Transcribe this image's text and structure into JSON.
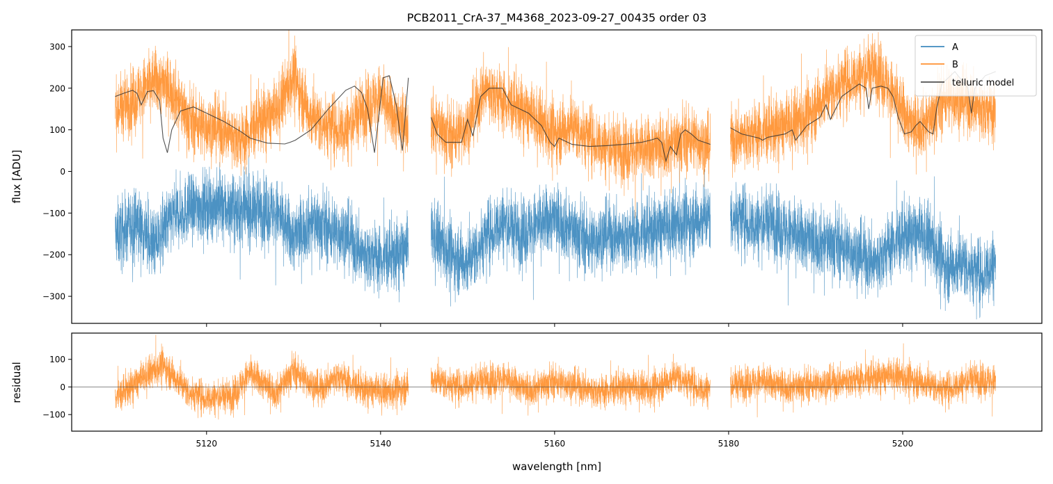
{
  "chart_data": [
    {
      "type": "line",
      "title": "PCB2011_CrA-37_M4368_2023-09-27_00435  order 03",
      "xlabel": "",
      "ylabel": "flux [ADU]",
      "xlim": [
        5104.5,
        5216.0
      ],
      "ylim": [
        -365,
        340
      ],
      "x_ticks": [
        5120,
        5140,
        5160,
        5180,
        5200
      ],
      "y_ticks": [
        -300,
        -200,
        -100,
        0,
        100,
        200,
        300
      ],
      "y_tick_labels": [
        "−300",
        "−200",
        "−100",
        "0",
        "100",
        "200",
        "300"
      ],
      "grid": false,
      "legend": {
        "placement": "top-right",
        "entries": [
          "A",
          "B",
          "telluric model"
        ]
      },
      "segments": [
        [
          5109.5,
          5143.2
        ],
        [
          5145.8,
          5177.9
        ],
        [
          5180.2,
          5210.7
        ]
      ],
      "series": [
        {
          "name": "A",
          "color": "#1f77b4",
          "x": [
            5110,
            5112,
            5114,
            5116,
            5118,
            5120,
            5122,
            5124,
            5126,
            5128,
            5130,
            5132,
            5134,
            5136,
            5138,
            5140,
            5142,
            5146,
            5148,
            5150,
            5152,
            5154,
            5156,
            5158,
            5160,
            5162,
            5164,
            5166,
            5168,
            5170,
            5172,
            5174,
            5176,
            5177.5,
            5181,
            5183,
            5185,
            5187,
            5189,
            5191,
            5193,
            5195,
            5197,
            5199,
            5201,
            5203,
            5205,
            5207,
            5209,
            5210.5
          ],
          "y": [
            -150,
            -120,
            -180,
            -110,
            -90,
            -80,
            -85,
            -100,
            -90,
            -100,
            -160,
            -120,
            -140,
            -150,
            -200,
            -210,
            -200,
            -150,
            -200,
            -220,
            -160,
            -120,
            -150,
            -130,
            -110,
            -140,
            -170,
            -150,
            -160,
            -150,
            -140,
            -130,
            -120,
            -110,
            -110,
            -130,
            -120,
            -150,
            -160,
            -170,
            -180,
            -200,
            -220,
            -170,
            -150,
            -160,
            -230,
            -220,
            -250,
            -220
          ]
        },
        {
          "name": "B",
          "color": "#ff7f0e",
          "x": [
            5110,
            5112,
            5114,
            5116,
            5118,
            5120,
            5122,
            5124,
            5126,
            5128,
            5130,
            5132,
            5134,
            5136,
            5138,
            5140,
            5142,
            5146,
            5148,
            5150,
            5152,
            5154,
            5156,
            5158,
            5160,
            5162,
            5164,
            5166,
            5168,
            5170,
            5172,
            5174,
            5176,
            5177.5,
            5181,
            5183,
            5185,
            5187,
            5189,
            5191,
            5193,
            5195,
            5197,
            5199,
            5201,
            5203,
            5205,
            5207,
            5209,
            5210.5
          ],
          "y": [
            150,
            180,
            220,
            200,
            120,
            110,
            100,
            70,
            120,
            140,
            230,
            130,
            110,
            100,
            150,
            180,
            120,
            120,
            80,
            110,
            200,
            170,
            150,
            120,
            90,
            110,
            80,
            60,
            50,
            50,
            60,
            70,
            80,
            60,
            80,
            90,
            100,
            110,
            130,
            180,
            210,
            230,
            250,
            180,
            110,
            120,
            180,
            170,
            150,
            140
          ]
        },
        {
          "name": "telluric model",
          "color": "#333333",
          "x": [
            5109.5,
            5110.5,
            5111.5,
            5112.0,
            5112.5,
            5113.2,
            5113.9,
            5114.6,
            5115.0,
            5115.5,
            5116.0,
            5117.0,
            5118.5,
            5120.0,
            5122.0,
            5124.0,
            5125.0,
            5127.0,
            5129.0,
            5129.6,
            5130.2,
            5132.0,
            5134.0,
            5136.0,
            5137.0,
            5137.8,
            5138.5,
            5139.3,
            5140.3,
            5141.0,
            5141.8,
            5142.5,
            5143.2,
            5145.8,
            5146.5,
            5147.5,
            5148.5,
            5149.3,
            5150.0,
            5150.6,
            5151.5,
            5152.5,
            5154.0,
            5154.5,
            5155.0,
            5157.0,
            5158.5,
            5159.5,
            5160.0,
            5160.5,
            5162.0,
            5164.0,
            5166.0,
            5168.0,
            5170.0,
            5171.0,
            5171.8,
            5172.3,
            5172.8,
            5173.3,
            5174.0,
            5174.5,
            5175.0,
            5175.7,
            5176.5,
            5177.9,
            5180.2,
            5181.5,
            5183.5,
            5183.9,
            5184.5,
            5186.5,
            5187.3,
            5187.7,
            5189.0,
            5190.5,
            5191.2,
            5191.7,
            5193.0,
            5195.0,
            5195.8,
            5196.1,
            5196.5,
            5197.5,
            5198.3,
            5198.9,
            5199.5,
            5200.2,
            5201.0,
            5201.5,
            5202.0,
            5203.0,
            5203.5,
            5203.9,
            5204.5,
            5206.0,
            5207.5,
            5207.9,
            5208.3,
            5209.5,
            5210.7
          ],
          "y": [
            180,
            188,
            195,
            188,
            160,
            192,
            194,
            170,
            80,
            45,
            100,
            145,
            155,
            140,
            120,
            95,
            80,
            68,
            66,
            70,
            75,
            100,
            150,
            195,
            205,
            190,
            150,
            45,
            225,
            230,
            160,
            50,
            225,
            130,
            90,
            70,
            70,
            70,
            125,
            85,
            180,
            200,
            200,
            180,
            160,
            140,
            110,
            70,
            60,
            80,
            65,
            60,
            62,
            65,
            70,
            75,
            80,
            70,
            25,
            60,
            40,
            90,
            100,
            90,
            75,
            65,
            105,
            90,
            80,
            75,
            82,
            90,
            100,
            75,
            110,
            130,
            160,
            125,
            180,
            210,
            200,
            150,
            200,
            205,
            200,
            180,
            130,
            90,
            95,
            110,
            120,
            95,
            90,
            150,
            210,
            240,
            200,
            140,
            200,
            230,
            240
          ]
        }
      ]
    },
    {
      "type": "line",
      "title": "",
      "xlabel": "wavelength [nm]",
      "ylabel": "residual",
      "xlim": [
        5104.5,
        5216.0
      ],
      "ylim": [
        -160,
        195
      ],
      "x_ticks": [
        5120,
        5140,
        5160,
        5180,
        5200
      ],
      "x_tick_labels": [
        "5120",
        "5140",
        "5160",
        "5180",
        "5200"
      ],
      "y_ticks": [
        -100,
        0,
        100
      ],
      "y_tick_labels": [
        "−100",
        "0",
        "100"
      ],
      "hline": 0,
      "grid": false,
      "series": [
        {
          "color": "#ff7f0e",
          "x": [
            5110,
            5113,
            5115,
            5118,
            5120,
            5123,
            5125,
            5128,
            5130,
            5133,
            5135,
            5138,
            5141,
            5143,
            5146,
            5149,
            5151,
            5154,
            5157,
            5160,
            5162,
            5165,
            5168,
            5171,
            5174,
            5177,
            5181,
            5184,
            5187,
            5190,
            5193,
            5196,
            5199,
            5202,
            5205,
            5208,
            5210.5
          ],
          "y": [
            -30,
            40,
            80,
            -20,
            -40,
            -30,
            50,
            -20,
            60,
            -10,
            40,
            -10,
            -20,
            0,
            30,
            0,
            20,
            30,
            -10,
            20,
            10,
            -20,
            0,
            -10,
            40,
            -10,
            10,
            20,
            0,
            10,
            20,
            30,
            40,
            20,
            -10,
            30,
            20
          ]
        }
      ]
    }
  ]
}
